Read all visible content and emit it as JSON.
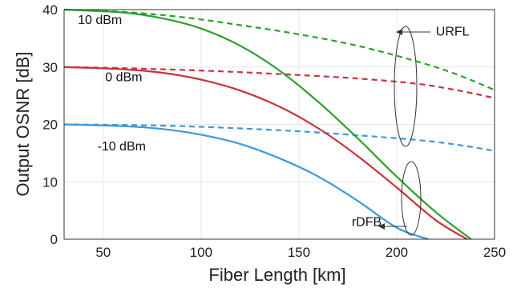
{
  "chart_data": {
    "type": "line",
    "xlabel": "Fiber Length [km]",
    "ylabel": "Output OSNR [dB]",
    "xlim": [
      30,
      250
    ],
    "ylim": [
      0,
      40
    ],
    "xticks": [
      50,
      100,
      150,
      200,
      250
    ],
    "yticks": [
      0,
      10,
      20,
      30,
      40
    ],
    "grid": true,
    "series": [
      {
        "color": "#2ca02c",
        "dash": true,
        "x": [
          30,
          60,
          90,
          120,
          150,
          180,
          210,
          230,
          250
        ],
        "y": [
          40,
          39.6,
          38.7,
          37.3,
          35.7,
          33.7,
          31.0,
          28.8,
          26.0
        ]
      },
      {
        "color": "#c8323c",
        "dash": true,
        "x": [
          30,
          60,
          90,
          120,
          150,
          180,
          210,
          230,
          250
        ],
        "y": [
          30,
          29.8,
          29.5,
          29.1,
          28.6,
          28.0,
          27.1,
          26.0,
          24.6
        ]
      },
      {
        "color": "#3a9ad9",
        "dash": true,
        "x": [
          30,
          60,
          90,
          120,
          150,
          180,
          210,
          230,
          250
        ],
        "y": [
          20,
          19.9,
          19.7,
          19.3,
          18.8,
          18.1,
          17.3,
          16.5,
          15.4
        ]
      },
      {
        "color": "#2ca02c",
        "dash": false,
        "x": [
          30,
          60,
          80,
          100,
          120,
          140,
          160,
          180,
          200,
          220,
          238
        ],
        "y": [
          40,
          39.5,
          38.5,
          36.7,
          33.7,
          29.4,
          23.9,
          17.6,
          10.9,
          4.7,
          0
        ]
      },
      {
        "color": "#c8323c",
        "dash": false,
        "x": [
          30,
          60,
          80,
          100,
          120,
          140,
          160,
          180,
          200,
          220,
          236
        ],
        "y": [
          30,
          29.6,
          29.0,
          27.8,
          25.9,
          23.1,
          19.3,
          14.5,
          9.0,
          3.3,
          0
        ]
      },
      {
        "color": "#3a9ad9",
        "dash": false,
        "x": [
          30,
          60,
          80,
          100,
          120,
          140,
          160,
          180,
          200,
          216
        ],
        "y": [
          20,
          19.7,
          19.2,
          18.2,
          16.6,
          14.1,
          10.9,
          6.7,
          2.0,
          0
        ]
      }
    ],
    "annotations": [
      {
        "text": "10 dBm",
        "x": 37,
        "y": 37.5
      },
      {
        "text": "0 dBm",
        "x": 51,
        "y": 27.5
      },
      {
        "text": "-10 dBm",
        "x": 47,
        "y": 15.5
      },
      {
        "text": "URFL",
        "x": 220,
        "y": 35.5
      },
      {
        "text": "rDFB",
        "x": 177,
        "y": 2.3
      }
    ]
  }
}
